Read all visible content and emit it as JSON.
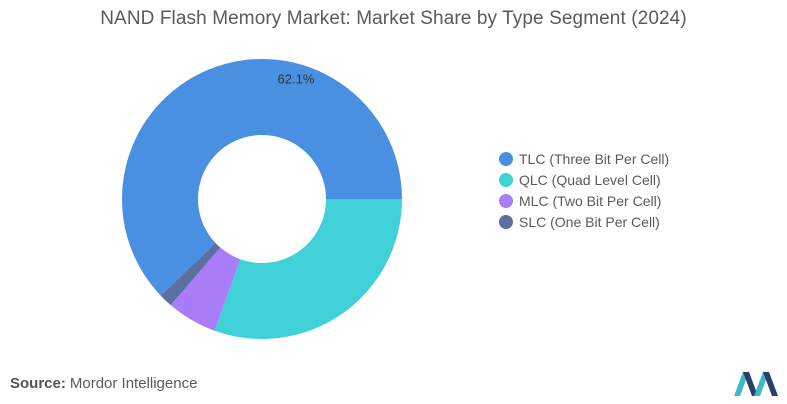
{
  "header": {
    "title": "NAND Flash Memory Market: Market Share by Type Segment (2024)"
  },
  "chart_data": {
    "type": "pie",
    "title": "NAND Flash Memory Market: Market Share by Type Segment (2024)",
    "variant": "donut",
    "categories": [
      "TLC (Three Bit Per Cell)",
      "QLC (Quad Level Cell)",
      "MLC (Two Bit Per Cell)",
      "SLC (One Bit Per Cell)"
    ],
    "values": [
      62.1,
      30.5,
      5.8,
      1.6
    ],
    "colors": [
      "#4a90e2",
      "#3fd0d8",
      "#a97cf8",
      "#5b6fa3"
    ],
    "data_labels": [
      "62.1%",
      "",
      "",
      ""
    ],
    "legend_position": "right"
  },
  "footer": {
    "source_label": "Source:",
    "source_value": "Mordor Intelligence"
  },
  "logo": {
    "icon": "mordor-intelligence-logo-icon",
    "colors": [
      "#2a3f6b",
      "#3fb8c8"
    ]
  }
}
